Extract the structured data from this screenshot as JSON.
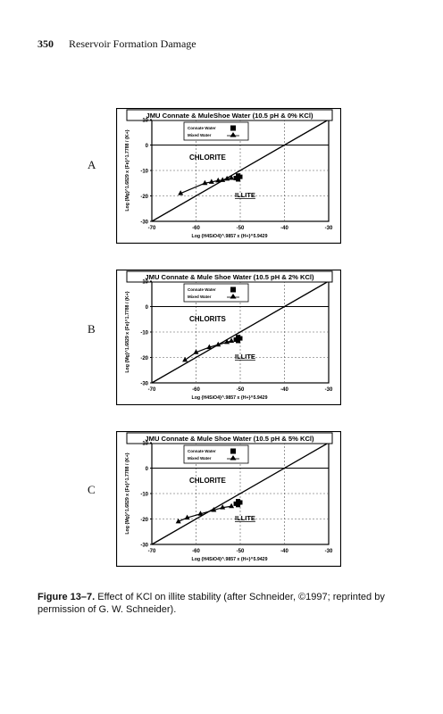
{
  "page": {
    "page_number": "350",
    "running_title": "Reservoir Formation Damage"
  },
  "caption": {
    "figure_label": "Figure 13–7.",
    "text": "Effect of KCl on illite stability (after Schneider, ©1997; reprinted by permission of G. W. Schneider)."
  },
  "chart_data": [
    {
      "panel": "A",
      "type": "scatter",
      "title": "JMU Connate & MuleShoe Water (10.5 pH & 0% KCl)",
      "xlabel": "Log  {H4SiO4}^.9857 x {H+}^5.9429",
      "ylabel": "Log  {Mg}^1.6829 x {Fe}^1.7788 / {K+}",
      "xlim": [
        -70,
        -30
      ],
      "ylim": [
        -30,
        10
      ],
      "xticks": [
        "-70",
        "-60",
        "-50",
        "-40",
        "-30"
      ],
      "yticks": [
        "10",
        "0",
        "-10",
        "-20",
        "-30"
      ],
      "regions": [
        "CHLORITE",
        "ILLITE"
      ],
      "legend": [
        "Connate Water",
        "Mixed Water"
      ],
      "boundary": [
        [
          -70,
          -30
        ],
        [
          -30,
          10
        ]
      ],
      "series": [
        {
          "name": "Connate Water",
          "marker": "square",
          "points": [
            [
              -50.5,
              -12
            ],
            [
              -50.5,
              -13.5
            ],
            [
              -51,
              -13
            ],
            [
              -50,
              -12.5
            ]
          ]
        },
        {
          "name": "Mixed Water",
          "marker": "triangle",
          "points": [
            [
              -63.5,
              -19
            ],
            [
              -58,
              -15
            ],
            [
              -56.5,
              -14.5
            ],
            [
              -55,
              -14
            ],
            [
              -54,
              -13.8
            ],
            [
              -53,
              -13.3
            ],
            [
              -52,
              -13
            ]
          ]
        }
      ]
    },
    {
      "panel": "B",
      "type": "scatter",
      "title": "JMU Connate & Mule Shoe Water (10.5 pH & 2% KCl)",
      "xlabel": "Log  {H4SiO4}^.9857 x {H+}^5.9429",
      "ylabel": "Log  {Mg}^1.6829 x {Fe}^1.7788 / {K+}",
      "xlim": [
        -70,
        -30
      ],
      "ylim": [
        -30,
        10
      ],
      "xticks": [
        "-70",
        "-60",
        "-50",
        "-40",
        "-30"
      ],
      "yticks": [
        "10",
        "0",
        "-10",
        "-20",
        "-30"
      ],
      "regions": [
        "CHLORITS",
        "ILLITE"
      ],
      "legend": [
        "Connate Water",
        "Mixed Water"
      ],
      "boundary": [
        [
          -70,
          -30
        ],
        [
          -30,
          10
        ]
      ],
      "series": [
        {
          "name": "Connate Water",
          "marker": "square",
          "points": [
            [
              -50.5,
              -12
            ],
            [
              -50.5,
              -13.5
            ],
            [
              -51,
              -13
            ],
            [
              -50,
              -12.5
            ]
          ]
        },
        {
          "name": "Mixed Water",
          "marker": "triangle",
          "points": [
            [
              -62.5,
              -21
            ],
            [
              -60,
              -18
            ],
            [
              -57,
              -16
            ],
            [
              -55,
              -15
            ],
            [
              -53,
              -14
            ],
            [
              -52,
              -13.5
            ]
          ]
        }
      ]
    },
    {
      "panel": "C",
      "type": "scatter",
      "title": "JMU Connate & Mule Shoe Water (10.5 pH & 5% KCl)",
      "xlabel": "Log  {H4SiO4}^.9857 x {H+}^5.9429",
      "ylabel": "Log  {Mg}^1.6829 x {Fe}^1.7788 / {K+}",
      "xlim": [
        -70,
        -30
      ],
      "ylim": [
        -30,
        10
      ],
      "xticks": [
        "-70",
        "-60",
        "-50",
        "-40",
        "-30"
      ],
      "yticks": [
        "10",
        "0",
        "-10",
        "-20",
        "-30"
      ],
      "regions": [
        "CHLORITE",
        "ILLITE"
      ],
      "legend": [
        "Connate Water",
        "Mixed Water"
      ],
      "boundary": [
        [
          -70,
          -30
        ],
        [
          -30,
          10
        ]
      ],
      "series": [
        {
          "name": "Connate Water",
          "marker": "square",
          "points": [
            [
              -50.5,
              -13
            ],
            [
              -50.5,
              -14.5
            ],
            [
              -51,
              -14
            ],
            [
              -50,
              -13.5
            ]
          ]
        },
        {
          "name": "Mixed Water",
          "marker": "triangle",
          "points": [
            [
              -64,
              -21
            ],
            [
              -62,
              -19.5
            ],
            [
              -59,
              -18
            ],
            [
              -56,
              -16.5
            ],
            [
              -54,
              -15.5
            ],
            [
              -52,
              -15
            ]
          ]
        }
      ]
    }
  ]
}
